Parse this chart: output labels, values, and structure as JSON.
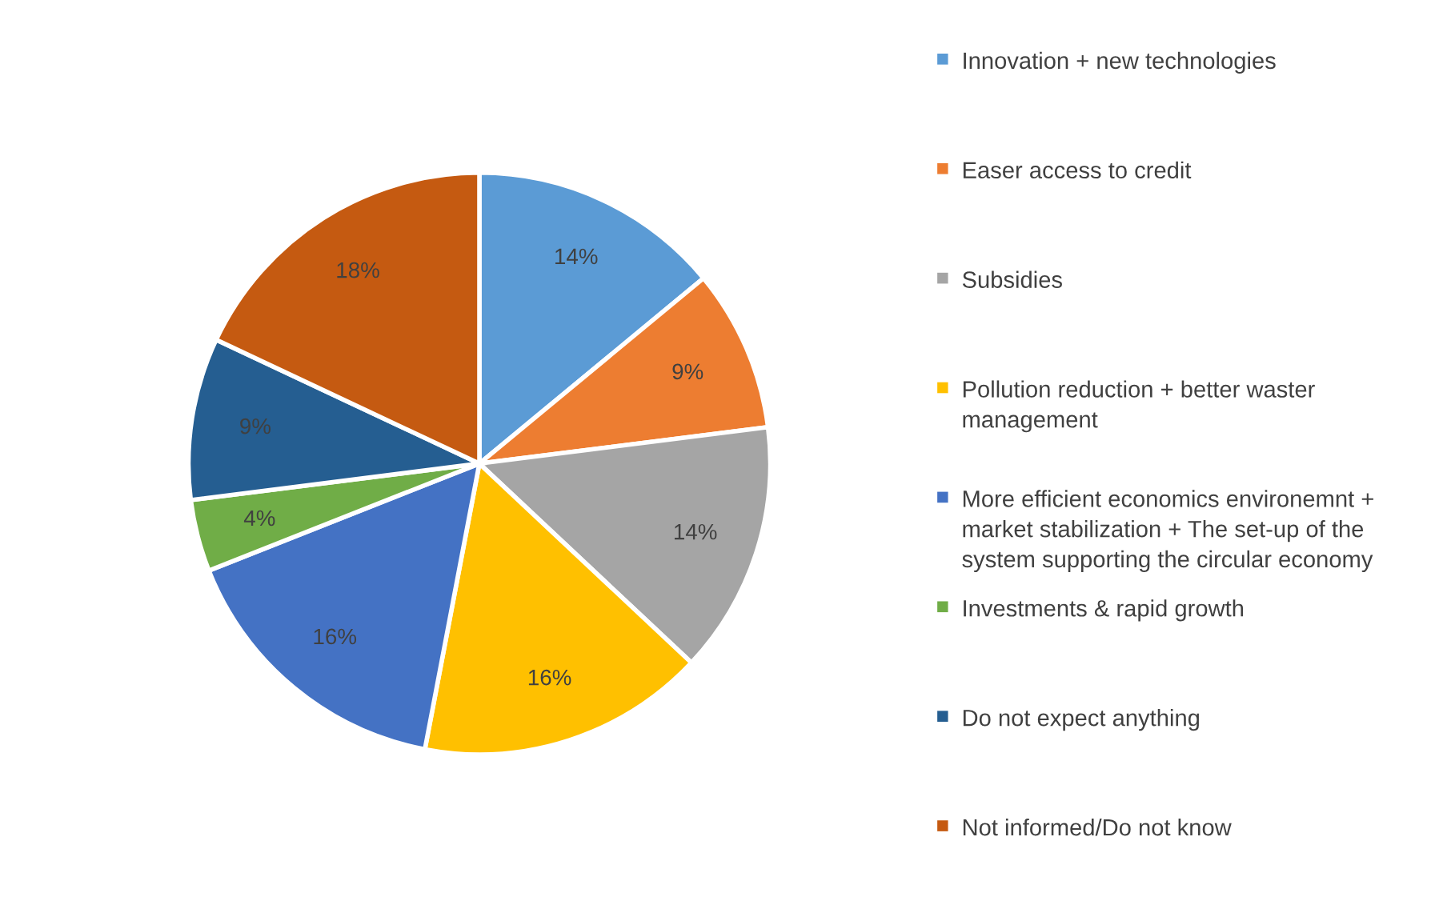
{
  "chart_data": {
    "type": "pie",
    "categories": [
      "Innovation + new technologies",
      "Easer access to credit",
      "Subsidies",
      "Pollution reduction + better waster management",
      "More efficient economics environemnt + market stabilization + The set-up of the system supporting the circular economy",
      "Investments & rapid growth",
      "Do not expect anything",
      "Not informed/Do not know"
    ],
    "values": [
      14,
      9,
      14,
      16,
      16,
      4,
      9,
      18
    ],
    "value_labels": [
      "14%",
      "9%",
      "14%",
      "16%",
      "16%",
      "4%",
      "9%",
      "18%"
    ],
    "colors": [
      "#5b9bd5",
      "#ed7d31",
      "#a5a5a5",
      "#ffc000",
      "#4472c4",
      "#70ad47",
      "#255e91",
      "#c55a11"
    ],
    "legend": "right"
  }
}
